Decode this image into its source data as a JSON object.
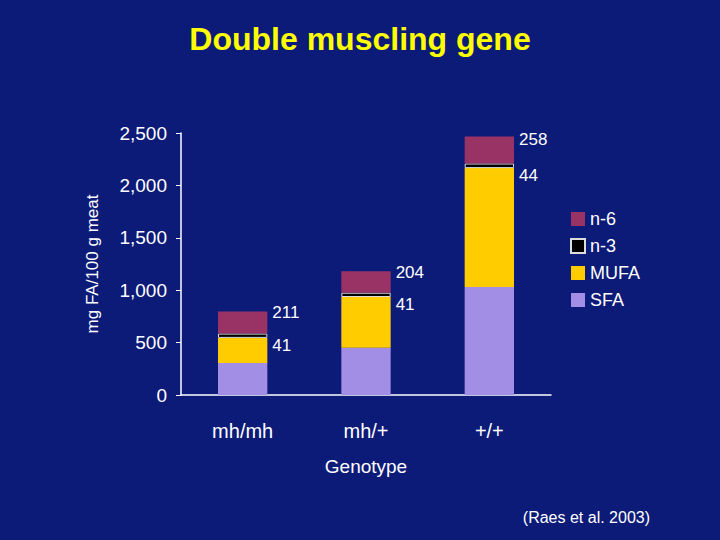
{
  "chart_data": {
    "type": "bar",
    "title": "Double muscling gene",
    "x_label": "Genotype",
    "y_label": "mg FA/100 g meat",
    "categories": [
      "mh/mh",
      "mh/+",
      "+/+"
    ],
    "stacked": true,
    "series": [
      {
        "name": "SFA",
        "color": "#a28ee4",
        "values": [
          305,
          450,
          1030
        ]
      },
      {
        "name": "MUFA",
        "color": "#ffcc00",
        "values": [
          240,
          485,
          1135
        ]
      },
      {
        "name": "n-3",
        "color": "#000000",
        "values": [
          41,
          41,
          44
        ],
        "data_labels": true
      },
      {
        "name": "n-6",
        "color": "#993366",
        "values": [
          211,
          204,
          258
        ],
        "data_labels": true
      }
    ],
    "ylim": [
      0,
      2500
    ],
    "yticks": [
      0,
      500,
      1000,
      1500,
      2000,
      2500
    ],
    "grid": false,
    "legend": "right",
    "annotations": [
      "(Raes et al. 2003)"
    ]
  }
}
